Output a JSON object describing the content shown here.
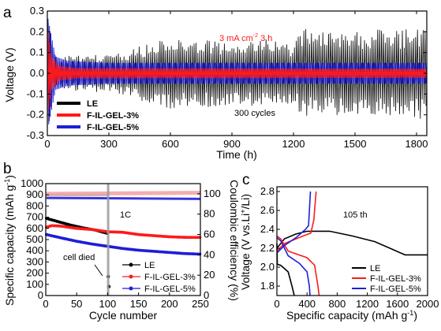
{
  "panels": {
    "a": "a",
    "b": "b",
    "c": "c"
  },
  "colors": {
    "LE": "#000000",
    "GEL3": "#ff1a1a",
    "GEL5": "#1f1fd6",
    "eff": "#f3a5a5"
  },
  "chart_data": [
    {
      "id": "a",
      "type": "line",
      "xlabel": "Time (h)",
      "ylabel": "Voltage (V)",
      "xlim": [
        0,
        1850
      ],
      "ylim": [
        -0.3,
        0.3
      ],
      "xticks": [
        0,
        300,
        600,
        900,
        1200,
        1500,
        1800
      ],
      "yticks": [
        -0.3,
        -0.2,
        -0.1,
        0.0,
        0.1,
        0.2,
        0.3
      ],
      "annotation": "300 cycles",
      "condition": {
        "prefix": "3 mA cm",
        "sup": "-2",
        "suffix": "  3 h"
      },
      "series": [
        {
          "name": "LE",
          "envelope": [
            [
              0,
              0.28
            ],
            [
              40,
              0.09
            ],
            [
              100,
              0.085
            ],
            [
              200,
              0.09
            ],
            [
              300,
              0.09
            ],
            [
              400,
              0.11
            ],
            [
              500,
              0.15
            ],
            [
              600,
              0.17
            ],
            [
              700,
              0.16
            ],
            [
              800,
              0.17
            ],
            [
              900,
              0.15
            ],
            [
              1000,
              0.16
            ],
            [
              1100,
              0.17
            ],
            [
              1200,
              0.14
            ],
            [
              1240,
              0.22
            ],
            [
              1300,
              0.2
            ],
            [
              1400,
              0.2
            ],
            [
              1500,
              0.21
            ],
            [
              1600,
              0.21
            ],
            [
              1700,
              0.21
            ],
            [
              1800,
              0.22
            ],
            [
              1850,
              0.22
            ]
          ]
        },
        {
          "name": "F-IL-GEL-3%",
          "envelope": [
            [
              0,
              0.22
            ],
            [
              20,
              0.08
            ],
            [
              60,
              0.035
            ],
            [
              150,
              0.025
            ],
            [
              1850,
              0.022
            ]
          ]
        },
        {
          "name": "F-IL-GEL-5%",
          "envelope": [
            [
              0,
              0.28
            ],
            [
              40,
              0.08
            ],
            [
              100,
              0.06
            ],
            [
              300,
              0.05
            ],
            [
              1850,
              0.05
            ]
          ]
        }
      ]
    },
    {
      "id": "b",
      "type": "scatter",
      "xlabel": "Cycle number",
      "ylabel": {
        "prefix": "Specific capacity (mAh g",
        "sup": "-1",
        "suffix": ")"
      },
      "y2label": "Coulombic efficiency (%)",
      "xlim": [
        0,
        250
      ],
      "ylim": [
        0,
        1000
      ],
      "y2lim": [
        0,
        110
      ],
      "xticks": [
        0,
        50,
        100,
        150,
        200,
        250
      ],
      "yticks": [
        0,
        100,
        200,
        300,
        400,
        500,
        600,
        700,
        800,
        900,
        1000
      ],
      "y2ticks": [
        0,
        20,
        40,
        60,
        80,
        100
      ],
      "rate": "1C",
      "annotation": "cell died",
      "series": [
        {
          "name": "LE",
          "capacity": [
            [
              1,
              690
            ],
            [
              20,
              660
            ],
            [
              40,
              630
            ],
            [
              60,
              605
            ],
            [
              80,
              585
            ],
            [
              100,
              555
            ],
            [
              101,
              170
            ],
            [
              102,
              80
            ]
          ],
          "efficiency_pct": [
            [
              1,
              99
            ],
            [
              50,
              99
            ],
            [
              100,
              99
            ]
          ]
        },
        {
          "name": "F-IL-GEL-3%",
          "capacity": [
            [
              1,
              610
            ],
            [
              10,
              625
            ],
            [
              25,
              620
            ],
            [
              50,
              600
            ],
            [
              75,
              590
            ],
            [
              100,
              570
            ],
            [
              125,
              565
            ],
            [
              150,
              545
            ],
            [
              175,
              535
            ],
            [
              200,
              525
            ],
            [
              225,
              520
            ],
            [
              250,
              520
            ]
          ],
          "efficiency_pct": [
            [
              1,
              100
            ],
            [
              250,
              101
            ]
          ]
        },
        {
          "name": "F-IL-GEL-5%",
          "capacity": [
            [
              1,
              545
            ],
            [
              25,
              515
            ],
            [
              50,
              485
            ],
            [
              75,
              460
            ],
            [
              100,
              440
            ],
            [
              125,
              420
            ],
            [
              150,
              405
            ],
            [
              175,
              395
            ],
            [
              200,
              385
            ],
            [
              225,
              375
            ],
            [
              250,
              370
            ]
          ],
          "efficiency_pct": [
            [
              1,
              96
            ],
            [
              250,
              95
            ]
          ]
        }
      ]
    },
    {
      "id": "c",
      "type": "line",
      "xlabel": {
        "prefix": "Specific capacity (mAh g",
        "sup": "-1",
        "suffix": ")"
      },
      "ylabel": {
        "prefix": "Voltage (V vs.Li",
        "sup": "+",
        "suffix": "/Li)"
      },
      "xlim": [
        0,
        2000
      ],
      "ylim": [
        1.7,
        2.85
      ],
      "xticks": [
        0,
        400,
        800,
        1200,
        1600,
        2000
      ],
      "yticks": [
        1.8,
        2.0,
        2.2,
        2.4,
        2.6,
        2.8
      ],
      "annotation": "105 th",
      "series": [
        {
          "name": "LE",
          "discharge": [
            [
              0,
              2.25
            ],
            [
              5,
              2.03
            ],
            [
              50,
              2.02
            ],
            [
              150,
              1.95
            ],
            [
              200,
              1.8
            ],
            [
              230,
              1.7
            ]
          ],
          "charge": [
            [
              0,
              2.2
            ],
            [
              100,
              2.3
            ],
            [
              250,
              2.35
            ],
            [
              400,
              2.38
            ],
            [
              700,
              2.38
            ],
            [
              1000,
              2.33
            ],
            [
              1300,
              2.27
            ],
            [
              1500,
              2.2
            ],
            [
              1700,
              2.13
            ],
            [
              2000,
              2.13
            ]
          ]
        },
        {
          "name": "F-IL-GEL-3%",
          "discharge": [
            [
              0,
              2.33
            ],
            [
              50,
              2.3
            ],
            [
              150,
              2.17
            ],
            [
              400,
              2.1
            ],
            [
              500,
              2.02
            ],
            [
              545,
              1.8
            ],
            [
              560,
              1.7
            ]
          ],
          "charge": [
            [
              0,
              2.17
            ],
            [
              100,
              2.25
            ],
            [
              350,
              2.33
            ],
            [
              450,
              2.36
            ],
            [
              490,
              2.5
            ],
            [
              520,
              2.8
            ]
          ]
        },
        {
          "name": "F-IL-GEL-5%",
          "discharge": [
            [
              0,
              2.31
            ],
            [
              50,
              2.28
            ],
            [
              150,
              2.12
            ],
            [
              300,
              2.04
            ],
            [
              400,
              1.95
            ],
            [
              430,
              1.8
            ],
            [
              440,
              1.7
            ]
          ],
          "charge": [
            [
              0,
              2.15
            ],
            [
              100,
              2.23
            ],
            [
              250,
              2.31
            ],
            [
              380,
              2.4
            ],
            [
              420,
              2.44
            ],
            [
              445,
              2.8
            ]
          ]
        }
      ]
    }
  ]
}
